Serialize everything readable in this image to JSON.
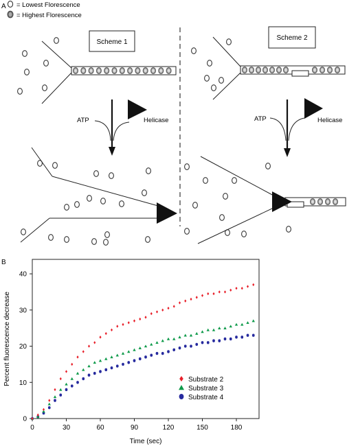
{
  "panel_a": {
    "label": "A",
    "legend": {
      "lowest": "= Lowest Florescence",
      "highest": "= Highest Florescence"
    },
    "scheme1": {
      "title": "Scheme 1",
      "atp": "ATP",
      "helicase": "Helicase"
    },
    "scheme2": {
      "title": "Scheme 2",
      "atp": "ATP",
      "helicase": "Helicase"
    }
  },
  "panel_b": {
    "label": "B"
  },
  "chart_data": {
    "type": "scatter",
    "title": "",
    "xlabel": "Time (sec)",
    "ylabel": "Percent fluorescence decrease",
    "xlim": [
      0,
      200
    ],
    "ylim": [
      0,
      44
    ],
    "xticks": [
      "0",
      "30",
      "60",
      "90",
      "120",
      "150",
      "180"
    ],
    "yticks": [
      "0",
      "10",
      "20",
      "30",
      "40"
    ],
    "legend_position": "lower-right",
    "series": [
      {
        "name": "Substrate 2",
        "color": "#e8202a",
        "marker": "diamond",
        "x": [
          0,
          5,
          10,
          15,
          20,
          25,
          30,
          35,
          40,
          45,
          50,
          55,
          60,
          65,
          70,
          75,
          80,
          85,
          90,
          95,
          100,
          105,
          110,
          115,
          120,
          125,
          130,
          135,
          140,
          145,
          150,
          155,
          160,
          165,
          170,
          175,
          180,
          185,
          190,
          195
        ],
        "y": [
          0,
          1,
          2.5,
          5,
          8,
          11,
          13,
          15,
          17,
          18.5,
          20,
          21,
          22.5,
          23.5,
          24.5,
          25.5,
          26,
          26.5,
          27,
          27.5,
          28,
          29,
          29.5,
          30,
          30.5,
          31,
          32,
          32.5,
          33,
          33.5,
          34,
          34.5,
          34.5,
          35,
          35,
          35.5,
          36,
          36,
          36.5,
          37
        ]
      },
      {
        "name": "Substrate 3",
        "color": "#0e9a4a",
        "marker": "triangle",
        "x": [
          0,
          5,
          10,
          15,
          20,
          25,
          30,
          35,
          40,
          45,
          50,
          55,
          60,
          65,
          70,
          75,
          80,
          85,
          90,
          95,
          100,
          105,
          110,
          115,
          120,
          125,
          130,
          135,
          140,
          145,
          150,
          155,
          160,
          165,
          170,
          175,
          180,
          185,
          190,
          195
        ],
        "y": [
          0,
          0.5,
          2,
          4,
          6,
          8,
          9.5,
          11,
          12.5,
          13.5,
          14.5,
          15.5,
          16,
          16.5,
          17,
          17.5,
          18,
          18.5,
          19,
          19.5,
          20,
          20.5,
          21,
          21.5,
          22,
          22,
          22.5,
          23,
          23,
          23.5,
          24,
          24.5,
          24.5,
          25,
          25,
          25.5,
          26,
          26,
          26.5,
          27
        ]
      },
      {
        "name": "Substrate 4",
        "color": "#262a9e",
        "marker": "circle",
        "x": [
          0,
          5,
          10,
          15,
          20,
          25,
          30,
          35,
          40,
          45,
          50,
          55,
          60,
          65,
          70,
          75,
          80,
          85,
          90,
          95,
          100,
          105,
          110,
          115,
          120,
          125,
          130,
          135,
          140,
          145,
          150,
          155,
          160,
          165,
          170,
          175,
          180,
          185,
          190,
          195
        ],
        "y": [
          0,
          0.5,
          1.5,
          3,
          5,
          6.5,
          8,
          9,
          10,
          11,
          12,
          12.5,
          13,
          13.5,
          14,
          14.5,
          15,
          15.5,
          16,
          16.5,
          17,
          17.5,
          18,
          18,
          18.5,
          19,
          19.5,
          20,
          20,
          20.5,
          21,
          21,
          21.5,
          21.5,
          22,
          22,
          22.5,
          22.5,
          23,
          23
        ]
      }
    ]
  }
}
